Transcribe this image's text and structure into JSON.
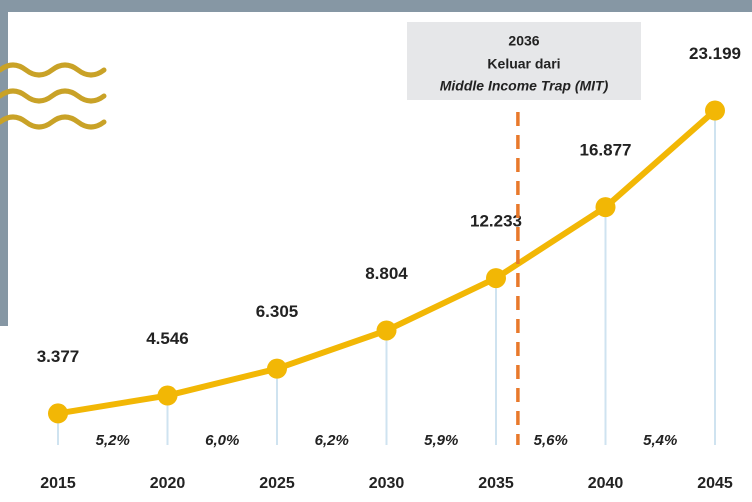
{
  "chart_data": {
    "type": "line",
    "x": [
      2015,
      2020,
      2025,
      2030,
      2035,
      2040,
      2045
    ],
    "xlim": [
      2015,
      2045
    ],
    "xticks": [
      2015,
      2020,
      2025,
      2030,
      2035,
      2040,
      2045
    ],
    "ylim": [
      0,
      25000
    ],
    "series": [
      {
        "color": "#f2b705",
        "values": [
          3377,
          4546,
          6305,
          8804,
          12233,
          16877,
          23199
        ],
        "value_labels": [
          "3.377",
          "4.546",
          "6.305",
          "8.804",
          "12.233",
          "16.877",
          "23.199"
        ]
      }
    ],
    "growth_rates": {
      "values": [
        5.2,
        6.0,
        6.2,
        5.9,
        5.6,
        5.4
      ],
      "labels": [
        "5,2%",
        "6,0%",
        "6,2%",
        "5,9%",
        "5,6%",
        "5,4%"
      ]
    },
    "annotation": {
      "x": 2036,
      "lines": [
        "Keluar dari",
        "Middle Income Trap (MIT)"
      ],
      "color": "#e8792b"
    }
  }
}
